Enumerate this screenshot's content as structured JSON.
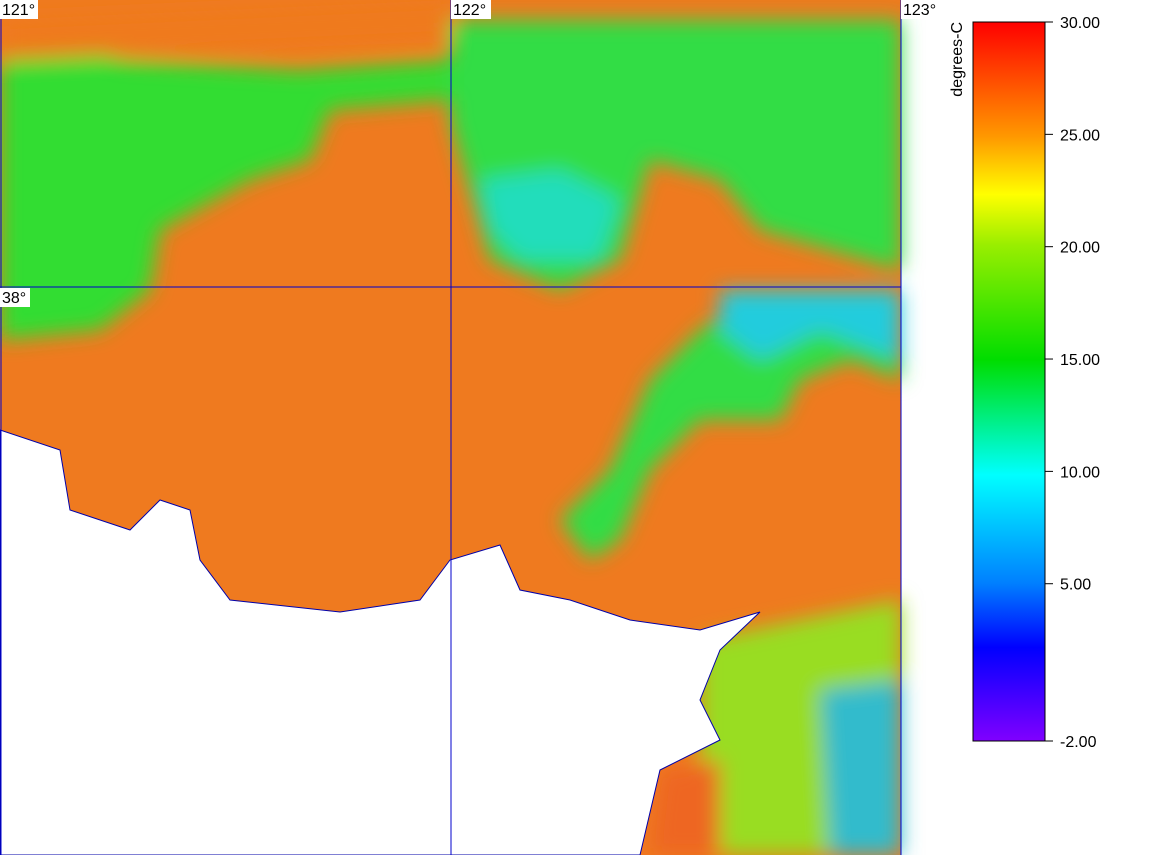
{
  "map": {
    "lon_labels": [
      "121°",
      "122°",
      "123°"
    ],
    "lat_labels": [
      "38°"
    ]
  },
  "colorbar": {
    "title": "degrees-C",
    "lim": [
      -2,
      30
    ],
    "ticks": [
      {
        "value": 30,
        "label": "30.00"
      },
      {
        "value": 25,
        "label": "25.00"
      },
      {
        "value": 20,
        "label": "20.00"
      },
      {
        "value": 15,
        "label": "15.00"
      },
      {
        "value": 10,
        "label": "10.00"
      },
      {
        "value": 5,
        "label": "5.00"
      },
      {
        "value": -2,
        "label": "-2.00"
      }
    ]
  }
}
